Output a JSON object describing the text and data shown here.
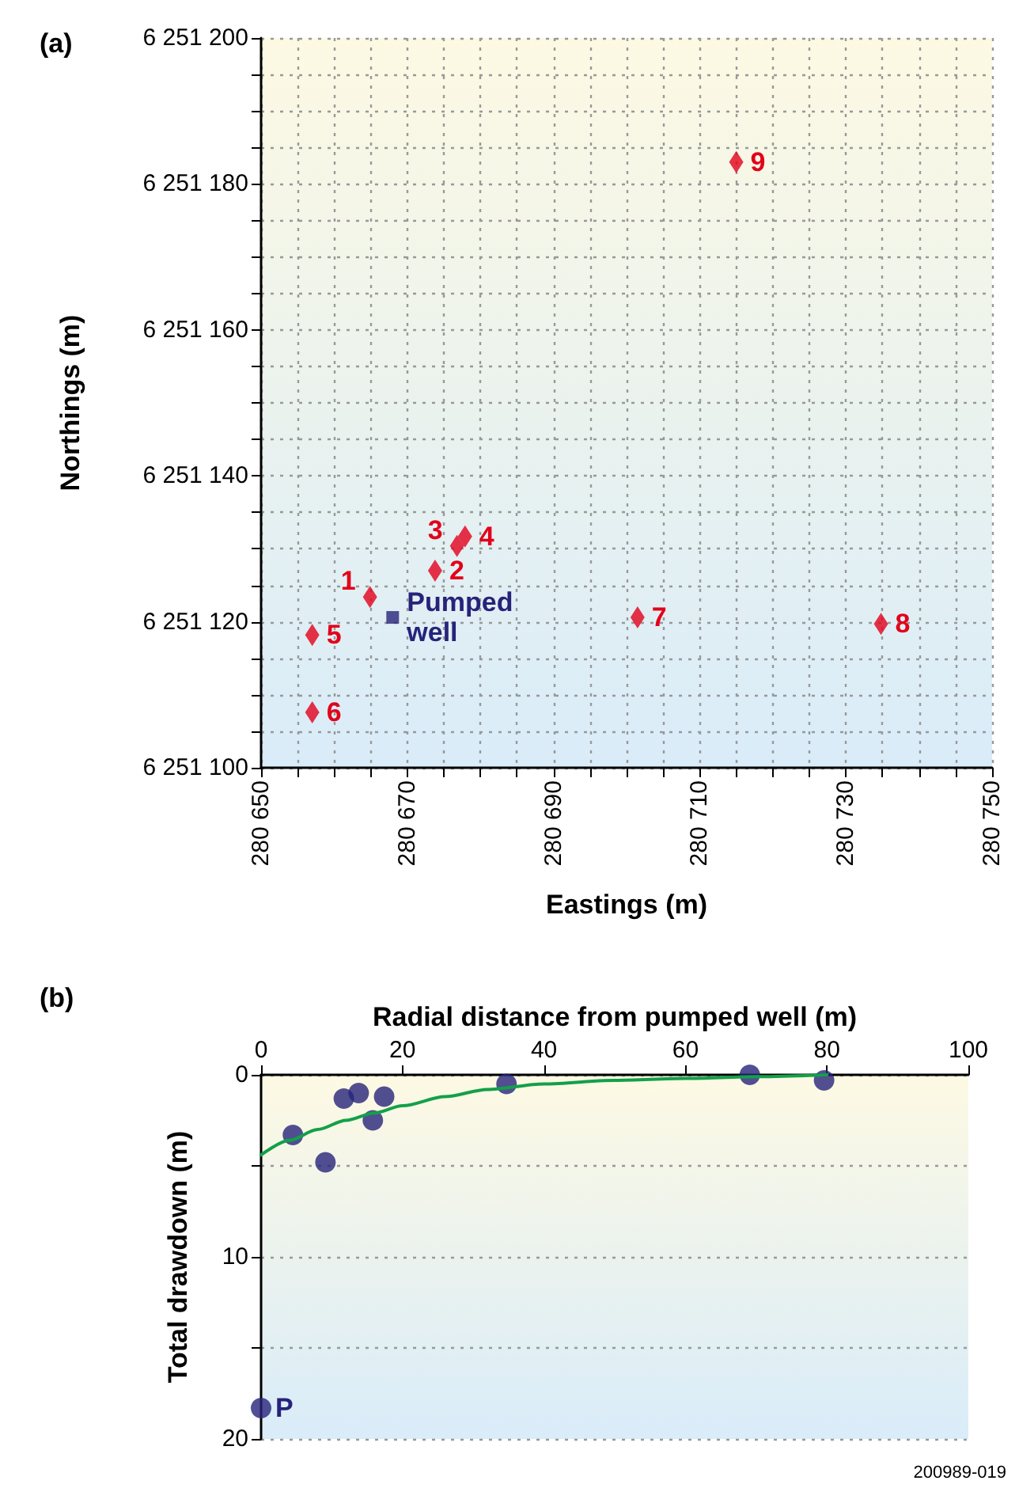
{
  "chart_data": [
    {
      "type": "scatter",
      "title": "(a)",
      "xlabel": "Eastings (m)",
      "ylabel": "Northings (m)",
      "grid": true,
      "marker": "diamond",
      "xlim": [
        280650,
        280750
      ],
      "xticks": [
        {
          "value": 280650,
          "label": "280 650"
        },
        {
          "value": 280655,
          "label": null
        },
        {
          "value": 280660,
          "label": null
        },
        {
          "value": 280665,
          "label": null
        },
        {
          "value": 280670,
          "label": "280 670"
        },
        {
          "value": 280675,
          "label": null
        },
        {
          "value": 280680,
          "label": null
        },
        {
          "value": 280685,
          "label": null
        },
        {
          "value": 280690,
          "label": "280 690"
        },
        {
          "value": 280695,
          "label": null
        },
        {
          "value": 280700,
          "label": null
        },
        {
          "value": 280705,
          "label": null
        },
        {
          "value": 280710,
          "label": "280 710"
        },
        {
          "value": 280715,
          "label": null
        },
        {
          "value": 280720,
          "label": null
        },
        {
          "value": 280725,
          "label": null
        },
        {
          "value": 280730,
          "label": "280 730"
        },
        {
          "value": 280735,
          "label": null
        },
        {
          "value": 280740,
          "label": null
        },
        {
          "value": 280745,
          "label": null
        },
        {
          "value": 280750,
          "label": "280 750"
        }
      ],
      "ylim": [
        6251100,
        6251200
      ],
      "yticks": [
        {
          "value": 6251100,
          "label": "6 251 100"
        },
        {
          "value": 6251105,
          "label": null
        },
        {
          "value": 6251110,
          "label": null
        },
        {
          "value": 6251115,
          "label": null
        },
        {
          "value": 6251120,
          "label": "6 251 120"
        },
        {
          "value": 6251125,
          "label": null
        },
        {
          "value": 6251130,
          "label": null
        },
        {
          "value": 6251135,
          "label": null
        },
        {
          "value": 6251140,
          "label": "6 251 140"
        },
        {
          "value": 6251145,
          "label": null
        },
        {
          "value": 6251150,
          "label": null
        },
        {
          "value": 6251155,
          "label": null
        },
        {
          "value": 6251160,
          "label": "6 251 160"
        },
        {
          "value": 6251165,
          "label": null
        },
        {
          "value": 6251170,
          "label": null
        },
        {
          "value": 6251175,
          "label": null
        },
        {
          "value": 6251180,
          "label": "6 251 180"
        },
        {
          "value": 6251185,
          "label": null
        },
        {
          "value": 6251190,
          "label": null
        },
        {
          "value": 6251195,
          "label": null
        },
        {
          "value": 6251200,
          "label": "6 251 200"
        }
      ],
      "annotations": [
        {
          "text": "1",
          "x": 280664.9,
          "y": 6251123.4
        },
        {
          "text": "2",
          "x": 280673.8,
          "y": 6251127
        },
        {
          "text": "3",
          "x": 280676.8,
          "y": 6251130.4
        },
        {
          "text": "4",
          "x": 280677.9,
          "y": 6251131.7
        },
        {
          "text": "5",
          "x": 280657,
          "y": 6251118.2
        },
        {
          "text": "6",
          "x": 280657,
          "y": 6251107.6
        },
        {
          "text": "7",
          "x": 280701.5,
          "y": 6251120.6
        },
        {
          "text": "8",
          "x": 280734.8,
          "y": 6251119.7
        },
        {
          "text": "9",
          "x": 280715,
          "y": 6251183
        },
        {
          "text": "Pumped well",
          "x": 280668,
          "y": 6251120.6
        }
      ],
      "series": [
        {
          "color": "#e2001a",
          "x": [
            280664.9,
            280673.8,
            280676.8,
            280677.9,
            280657,
            280657,
            280701.5,
            280734.8,
            280715
          ],
          "values": [
            6251123.4,
            6251127,
            6251130.4,
            6251131.7,
            6251118.2,
            6251107.6,
            6251120.6,
            6251119.7,
            6251183
          ]
        },
        {
          "color": "#27237a",
          "marker": "square",
          "x": [
            280668
          ],
          "values": [
            6251120.6
          ]
        }
      ]
    },
    {
      "type": "scatter",
      "title": "(b)",
      "xlabel": "Radial distance from pumped well (m)",
      "ylabel": "Total drawdown (m)",
      "grid": "y",
      "marker": "circle",
      "xlim": [
        0,
        100
      ],
      "xticks": [
        0,
        20,
        40,
        60,
        80,
        100
      ],
      "ylim": [
        20,
        0
      ],
      "yticks": [
        0,
        {
          "value": 5,
          "label": null
        },
        10,
        {
          "value": 15,
          "label": null
        },
        20
      ],
      "annotations": [
        "200989-019",
        {
          "text": "P",
          "x": 0,
          "y": 18.3
        }
      ],
      "series": [
        {
          "color": "#27237a",
          "x": [
            4.5,
            9.1,
            11.7,
            13.8,
            15.8,
            17.4,
            34.7,
            69.1,
            79.6,
            0
          ],
          "values": [
            3.3,
            4.8,
            1.3,
            1.0,
            2.5,
            1.2,
            0.5,
            0.0,
            0.3,
            18.3
          ]
        },
        {
          "type": "line",
          "color": "#13a04a",
          "marker": "none",
          "line_style": "solid",
          "x": [
            0,
            4,
            8,
            12,
            16,
            20,
            26,
            32,
            40,
            50,
            60,
            70,
            80
          ],
          "values": [
            4.4,
            3.6,
            3.0,
            2.5,
            2.1,
            1.7,
            1.2,
            0.8,
            0.5,
            0.3,
            0.2,
            0.1,
            0.0
          ]
        }
      ]
    }
  ]
}
